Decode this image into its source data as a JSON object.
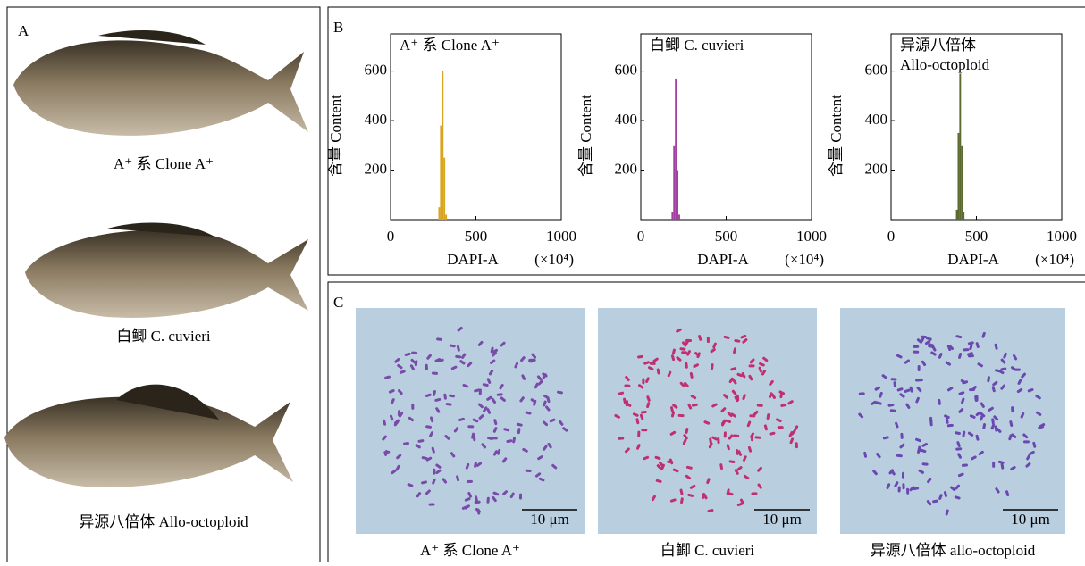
{
  "panel_labels": {
    "a": "A",
    "b": "B",
    "c": "C"
  },
  "panel_a": {
    "captions": [
      "A⁺ 系 Clone A⁺",
      "白鲫 C. cuvieri",
      "异源八倍体 Allo-octoploid"
    ]
  },
  "panel_c": {
    "captions": [
      "A⁺ 系 Clone A⁺",
      "白鲫 C. cuvieri",
      "异源八倍体 allo-octoploid"
    ],
    "scale_bar": "10 μm"
  },
  "chart_data": [
    {
      "type": "histogram",
      "title_lines": [
        "A⁺ 系 Clone A⁺"
      ],
      "x_label": "DAPI-A",
      "x_unit": "(×10⁴)",
      "y_label": "含量 Content",
      "bins": [
        280,
        290,
        300,
        310,
        320,
        330
      ],
      "values": [
        50,
        380,
        600,
        250,
        20
      ],
      "color": "#d9a520",
      "xlim": [
        0,
        1000
      ],
      "xticks": [
        0,
        500,
        1000
      ],
      "ylim": [
        0,
        750
      ],
      "yticks": [
        200,
        400,
        600
      ]
    },
    {
      "type": "histogram",
      "title_lines": [
        "白鲫 C. cuvieri"
      ],
      "x_label": "DAPI-A",
      "x_unit": "(×10⁴)",
      "y_label": "含量 Content",
      "bins": [
        180,
        190,
        200,
        210,
        220,
        230
      ],
      "values": [
        30,
        300,
        570,
        200,
        20
      ],
      "color": "#a040a0",
      "xlim": [
        0,
        1000
      ],
      "xticks": [
        0,
        500,
        1000
      ],
      "ylim": [
        0,
        750
      ],
      "yticks": [
        200,
        400,
        600
      ]
    },
    {
      "type": "histogram",
      "title_lines": [
        "异源八倍体",
        "Allo-octoploid"
      ],
      "x_label": "DAPI-A",
      "x_unit": "(×10⁴)",
      "y_label": "含量 Content",
      "bins": [
        380,
        390,
        400,
        410,
        420,
        430
      ],
      "values": [
        40,
        350,
        590,
        300,
        30
      ],
      "color": "#5a6a30",
      "xlim": [
        0,
        1000
      ],
      "xticks": [
        0,
        500,
        1000
      ],
      "ylim": [
        0,
        750
      ],
      "yticks": [
        200,
        400,
        600
      ]
    }
  ]
}
